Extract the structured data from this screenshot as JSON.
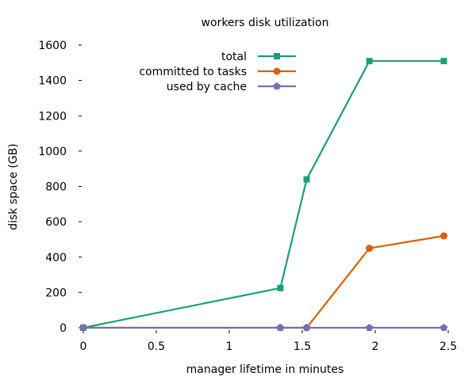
{
  "chart_data": {
    "type": "line",
    "title": "workers disk utilization",
    "xlabel": "manager lifetime in minutes",
    "ylabel": "disk space (GB)",
    "xlim": [
      0,
      2.5
    ],
    "ylim": [
      0,
      1600
    ],
    "xticks": [
      0,
      0.5,
      1,
      1.5,
      2,
      2.5
    ],
    "xtick_labels": [
      "0",
      "0.5",
      "1",
      "1.5",
      "2",
      "2.5"
    ],
    "yticks": [
      0,
      200,
      400,
      600,
      800,
      1000,
      1200,
      1400,
      1600
    ],
    "ytick_labels": [
      "0",
      "200",
      "400",
      "600",
      "800",
      "1000",
      "1200",
      "1400",
      "1600"
    ],
    "grid": false,
    "legend_position": "top-right",
    "series": [
      {
        "name": "total",
        "marker": "square",
        "color": "#1b9e77",
        "points": [
          [
            0,
            0
          ],
          [
            1.35,
            225
          ],
          [
            1.53,
            840
          ],
          [
            1.96,
            1510
          ],
          [
            2.47,
            1510
          ]
        ]
      },
      {
        "name": "committed to tasks",
        "marker": "circle",
        "color": "#d95f02",
        "points": [
          [
            0,
            0
          ],
          [
            1.35,
            0
          ],
          [
            1.53,
            0
          ],
          [
            1.96,
            450
          ],
          [
            2.47,
            520
          ]
        ]
      },
      {
        "name": "used by cache",
        "marker": "pentagon",
        "color": "#7570b3",
        "points": [
          [
            0,
            0
          ],
          [
            1.35,
            0
          ],
          [
            1.53,
            0
          ],
          [
            1.96,
            0
          ],
          [
            2.47,
            0
          ]
        ]
      }
    ]
  }
}
